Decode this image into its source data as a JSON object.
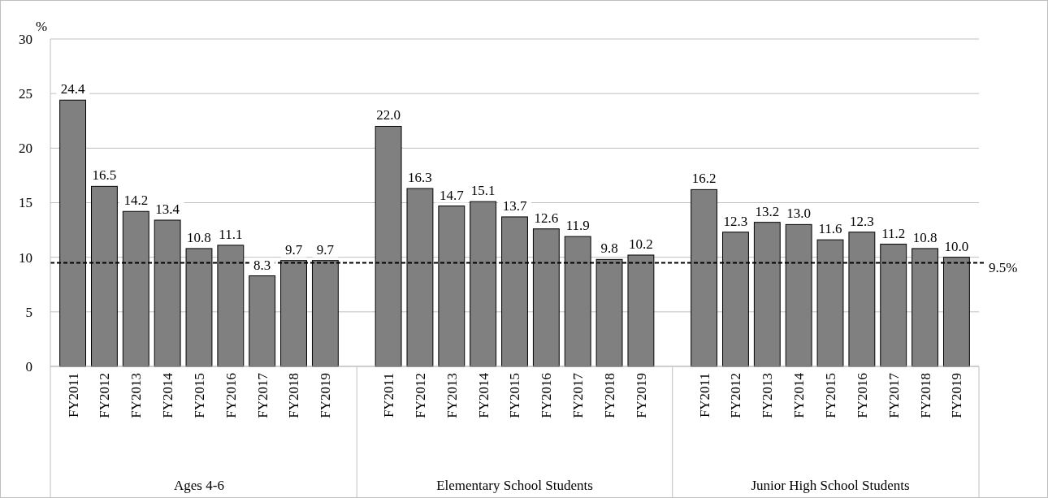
{
  "chart_data": {
    "type": "bar",
    "ylabel": "%",
    "categories": [
      "FY2011",
      "FY2012",
      "FY2013",
      "FY2014",
      "FY2015",
      "FY2016",
      "FY2017",
      "FY2018",
      "FY2019",
      null,
      "FY2011",
      "FY2012",
      "FY2013",
      "FY2014",
      "FY2015",
      "FY2016",
      "FY2017",
      "FY2018",
      "FY2019",
      null,
      "FY2011",
      "FY2012",
      "FY2013",
      "FY2014",
      "FY2015",
      "FY2016",
      "FY2017",
      "FY2018",
      "FY2019"
    ],
    "values": [
      24.4,
      16.5,
      14.2,
      13.4,
      10.8,
      11.1,
      8.3,
      9.7,
      9.7,
      null,
      22.0,
      16.3,
      14.7,
      15.1,
      13.7,
      12.6,
      11.9,
      9.8,
      10.2,
      null,
      16.2,
      12.3,
      13.2,
      13.0,
      11.6,
      12.3,
      11.2,
      10.8,
      10.0
    ],
    "value_labels": [
      "24.4",
      "16.5",
      "14.2",
      "13.4",
      "10.8",
      "11.1",
      "8.3",
      "9.7",
      "9.7",
      null,
      "22.0",
      "16.3",
      "14.7",
      "15.1",
      "13.7",
      "12.6",
      "11.9",
      "9.8",
      "10.2",
      null,
      "16.2",
      "12.3",
      "13.2",
      "13.0",
      "11.6",
      "12.3",
      "11.2",
      "10.8",
      "10.0"
    ],
    "color": "#808080",
    "ylim": [
      0,
      30
    ],
    "yticks": [
      0,
      5,
      10,
      15,
      20,
      25,
      30
    ],
    "grid": "y",
    "ref_lines": [
      {
        "axis": "y",
        "value": 9.5,
        "label": "9.5%",
        "line_style": "dashed",
        "color": "#000000"
      }
    ],
    "annotations": [
      "Ages 4-6",
      "Elementary School Students",
      "Junior High School Students"
    ]
  }
}
